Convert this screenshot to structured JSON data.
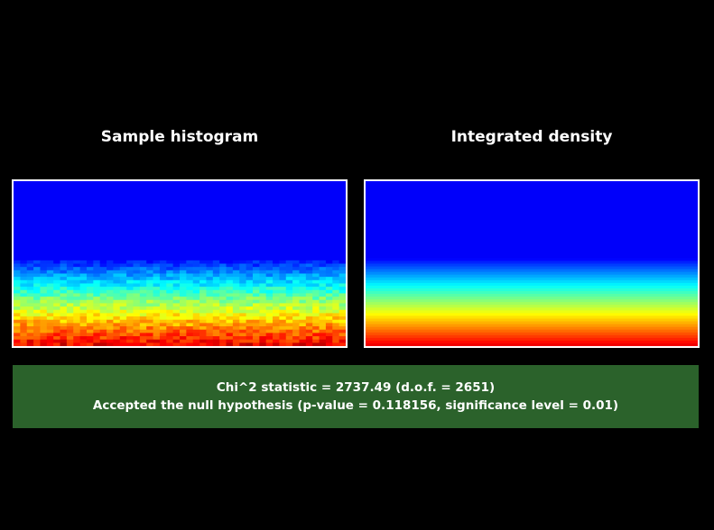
{
  "colors": {
    "background": "#000000",
    "frame_border": "#ffffff",
    "result_box": "#2b622b",
    "text": "#ffffff"
  },
  "chart_data": [
    {
      "type": "heatmap",
      "title": "Sample histogram",
      "colormap": "jet",
      "grid": "50x50",
      "noisy": true,
      "xlabel": "",
      "ylabel": ""
    },
    {
      "type": "heatmap",
      "title": "Integrated density",
      "colormap": "jet",
      "grid": "50x50",
      "noisy": false,
      "xlabel": "",
      "ylabel": ""
    }
  ],
  "result": {
    "line1": "Chi^2 statistic = 2737.49 (d.o.f. = 2651)",
    "line2": "Accepted the null hypothesis (p-value = 0.118156, significance level = 0.01)"
  }
}
